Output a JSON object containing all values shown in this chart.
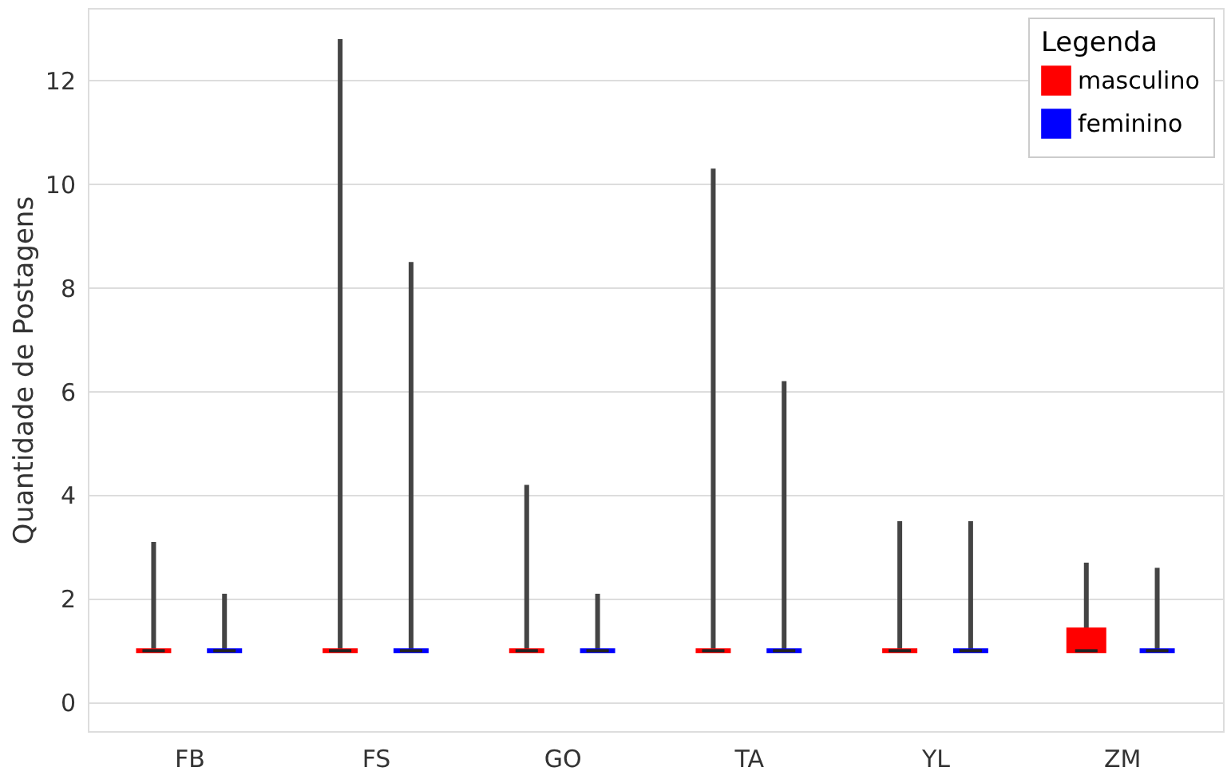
{
  "chart_data": {
    "type": "box",
    "ylabel": "Quantidade de Postagens",
    "categories": [
      "FB",
      "FS",
      "GO",
      "TA",
      "YL",
      "ZM"
    ],
    "ylim": [
      -0.55,
      13.4
    ],
    "yticks": [
      0,
      2,
      4,
      6,
      8,
      10,
      12
    ],
    "grid": "y",
    "legend": "top right",
    "legend_title": "Legenda",
    "series": [
      {
        "name": "masculino",
        "color": "#ff0000",
        "boxes": [
          {
            "low": 1,
            "q1": 1,
            "median": 1,
            "q3": 1,
            "high": 3.1
          },
          {
            "low": 1,
            "q1": 1,
            "median": 1,
            "q3": 1,
            "high": 12.8
          },
          {
            "low": 1,
            "q1": 1,
            "median": 1,
            "q3": 1,
            "high": 4.2
          },
          {
            "low": 1,
            "q1": 1,
            "median": 1,
            "q3": 1,
            "high": 10.3
          },
          {
            "low": 1,
            "q1": 1,
            "median": 1,
            "q3": 1,
            "high": 3.5
          },
          {
            "low": 1,
            "q1": 1,
            "median": 1,
            "q3": 1.4,
            "high": 2.7
          }
        ]
      },
      {
        "name": "feminino",
        "color": "#0000ff",
        "boxes": [
          {
            "low": 1,
            "q1": 1,
            "median": 1,
            "q3": 1,
            "high": 2.1
          },
          {
            "low": 1,
            "q1": 1,
            "median": 1,
            "q3": 1,
            "high": 8.5
          },
          {
            "low": 1,
            "q1": 1,
            "median": 1,
            "q3": 1,
            "high": 2.1
          },
          {
            "low": 1,
            "q1": 1,
            "median": 1,
            "q3": 1,
            "high": 6.2
          },
          {
            "low": 1,
            "q1": 1,
            "median": 1,
            "q3": 1,
            "high": 3.5
          },
          {
            "low": 1,
            "q1": 1,
            "median": 1,
            "q3": 1,
            "high": 2.6
          }
        ]
      }
    ]
  }
}
